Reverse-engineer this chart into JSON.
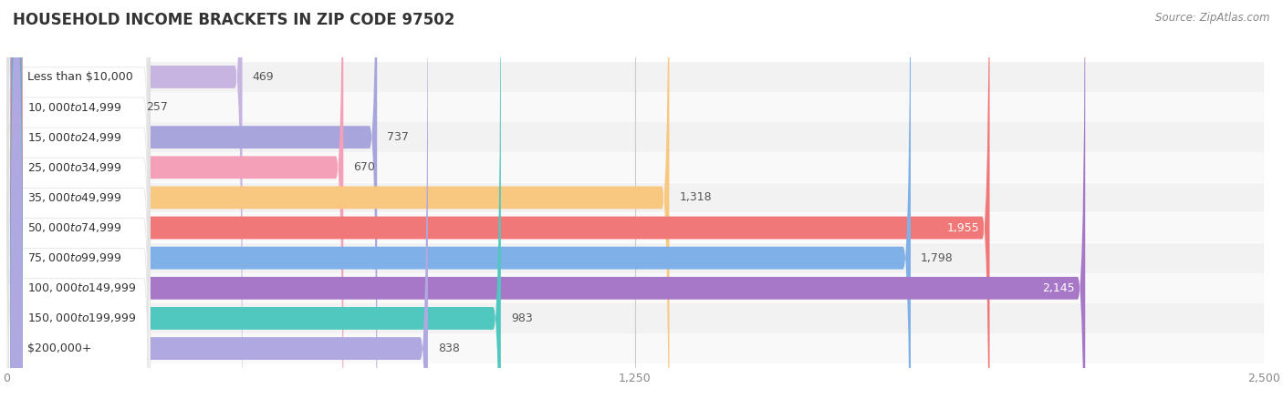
{
  "title": "Household Income Brackets in Zip Code 97502",
  "title_upper": "HOUSEHOLD INCOME BRACKETS IN ZIP CODE 97502",
  "source": "Source: ZipAtlas.com",
  "categories": [
    "Less than $10,000",
    "$10,000 to $14,999",
    "$15,000 to $24,999",
    "$25,000 to $34,999",
    "$35,000 to $49,999",
    "$50,000 to $74,999",
    "$75,000 to $99,999",
    "$100,000 to $149,999",
    "$150,000 to $199,999",
    "$200,000+"
  ],
  "values": [
    469,
    257,
    737,
    670,
    1318,
    1955,
    1798,
    2145,
    983,
    838
  ],
  "bar_colors": [
    "#c8b4e0",
    "#6dccc4",
    "#a8a4dc",
    "#f4a0b8",
    "#f8c880",
    "#f07878",
    "#80b0e8",
    "#a878c8",
    "#50c8c0",
    "#b0a8e0"
  ],
  "dot_colors": [
    "#c8b4e0",
    "#6dccc4",
    "#a8a4dc",
    "#f4a0b8",
    "#f8c880",
    "#f07878",
    "#80b0e8",
    "#a878c8",
    "#50c8c0",
    "#b0a8e0"
  ],
  "background_color": "#ffffff",
  "row_bg_color": "#f2f2f2",
  "label_box_color": "#ffffff",
  "xlim": [
    0,
    2500
  ],
  "xticks": [
    0,
    1250,
    2500
  ],
  "bar_height": 0.75,
  "title_fontsize": 12,
  "label_fontsize": 9,
  "value_fontsize": 9
}
